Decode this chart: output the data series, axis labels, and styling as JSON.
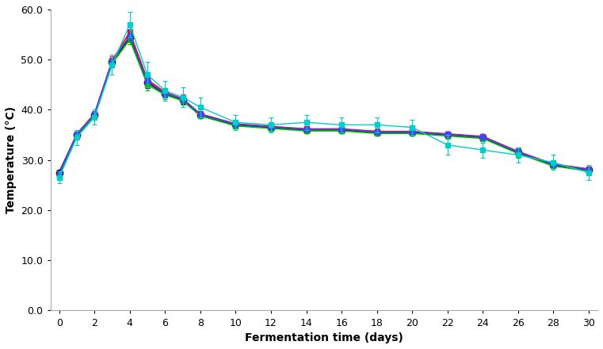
{
  "xlabel": "Fermentation time (days)",
  "ylabel": "Temperature (°C)",
  "xlim": [
    -0.5,
    30.5
  ],
  "ylim": [
    0.0,
    60.0
  ],
  "xticks": [
    0,
    2,
    4,
    6,
    8,
    10,
    12,
    14,
    16,
    18,
    20,
    22,
    24,
    26,
    28,
    30
  ],
  "yticks": [
    0.0,
    10.0,
    20.0,
    30.0,
    40.0,
    50.0,
    60.0
  ],
  "x": [
    0,
    1,
    2,
    3,
    4,
    5,
    6,
    7,
    8,
    10,
    12,
    14,
    16,
    18,
    20,
    22,
    24,
    26,
    28,
    30
  ],
  "series": [
    {
      "color": "#000000",
      "marker": "o",
      "markersize": 6,
      "linewidth": 1.5,
      "y": [
        27.5,
        35.0,
        39.0,
        49.5,
        54.5,
        45.5,
        43.2,
        42.0,
        39.0,
        37.0,
        36.5,
        36.0,
        36.0,
        35.5,
        35.5,
        35.0,
        34.5,
        31.5,
        29.0,
        28.0
      ],
      "yerr": [
        0.5,
        0.5,
        0.5,
        0.8,
        1.0,
        1.2,
        0.8,
        0.8,
        0.5,
        0.5,
        0.5,
        0.5,
        0.5,
        0.5,
        0.5,
        0.5,
        0.5,
        0.8,
        0.5,
        0.5
      ]
    },
    {
      "color": "#FF0000",
      "marker": "s",
      "markersize": 5,
      "linewidth": 1.2,
      "y": [
        27.2,
        35.2,
        39.2,
        49.8,
        55.5,
        46.0,
        43.5,
        42.2,
        39.2,
        37.2,
        36.7,
        36.2,
        36.2,
        35.7,
        35.7,
        35.2,
        34.7,
        31.7,
        29.2,
        28.2
      ],
      "yerr": [
        0.5,
        0.5,
        0.5,
        0.8,
        1.0,
        1.2,
        0.8,
        0.8,
        0.5,
        0.5,
        0.5,
        0.5,
        0.5,
        0.5,
        0.5,
        0.5,
        0.5,
        0.8,
        0.5,
        0.5
      ]
    },
    {
      "color": "#00BB00",
      "marker": "s",
      "markersize": 5,
      "linewidth": 1.2,
      "y": [
        26.8,
        34.8,
        38.8,
        49.2,
        54.0,
        45.0,
        43.0,
        41.8,
        38.8,
        36.8,
        36.3,
        35.8,
        35.8,
        35.3,
        35.3,
        34.8,
        34.3,
        31.3,
        28.8,
        27.8
      ],
      "yerr": [
        0.5,
        0.5,
        0.5,
        0.8,
        1.0,
        1.2,
        0.8,
        0.8,
        0.5,
        0.5,
        0.5,
        0.5,
        0.5,
        0.5,
        0.5,
        0.5,
        0.5,
        0.8,
        0.5,
        0.5
      ]
    },
    {
      "color": "#4444FF",
      "marker": "s",
      "markersize": 5,
      "linewidth": 1.2,
      "y": [
        27.3,
        35.1,
        39.1,
        49.6,
        54.8,
        45.7,
        43.3,
        42.1,
        39.1,
        37.1,
        36.6,
        36.1,
        36.1,
        35.6,
        35.6,
        35.1,
        34.6,
        31.6,
        29.1,
        28.1
      ],
      "yerr": [
        0.5,
        0.5,
        0.5,
        0.8,
        1.0,
        1.2,
        0.8,
        0.8,
        0.5,
        0.5,
        0.5,
        0.5,
        0.5,
        0.5,
        0.5,
        0.5,
        0.5,
        0.8,
        0.5,
        0.5
      ]
    },
    {
      "color": "#00CCCC",
      "marker": "s",
      "markersize": 4,
      "linewidth": 1.0,
      "y": [
        26.5,
        34.5,
        38.5,
        49.0,
        57.0,
        47.0,
        43.8,
        42.5,
        40.5,
        37.5,
        37.0,
        37.5,
        37.0,
        37.0,
        36.5,
        33.0,
        32.0,
        31.0,
        29.5,
        27.5
      ],
      "yerr": [
        1.2,
        1.5,
        1.5,
        2.0,
        2.5,
        2.5,
        2.0,
        2.0,
        2.0,
        1.5,
        1.5,
        1.5,
        1.5,
        1.5,
        1.5,
        2.0,
        1.5,
        1.5,
        1.5,
        1.5
      ]
    }
  ],
  "background_color": "#FFFFFF",
  "spine_color": "#AAAAAA",
  "label_fontsize": 10,
  "tick_fontsize": 9
}
